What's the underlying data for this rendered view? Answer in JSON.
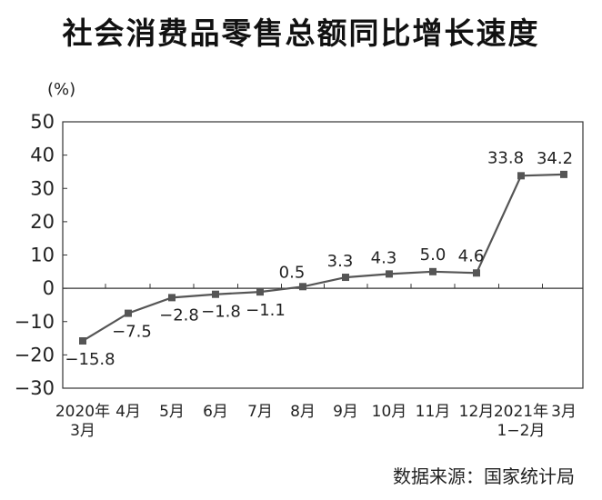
{
  "chart_data": {
    "type": "line",
    "title": "社会消费品零售总额同比增长速度",
    "ylabel": "(%)",
    "ylim": [
      -30,
      50
    ],
    "yticks": [
      "50",
      "40",
      "30",
      "20",
      "10",
      "0",
      "−10",
      "−20",
      "−30"
    ],
    "categories": [
      [
        "2020年",
        "3月"
      ],
      [
        "4月"
      ],
      [
        "5月"
      ],
      [
        "6月"
      ],
      [
        "7月"
      ],
      [
        "8月"
      ],
      [
        "9月"
      ],
      [
        "10月"
      ],
      [
        "11月"
      ],
      [
        "12月"
      ],
      [
        "2021年",
        "1−2月"
      ],
      [
        "3月"
      ]
    ],
    "values": [
      -15.8,
      -7.5,
      -2.8,
      -1.8,
      -1.1,
      0.5,
      3.3,
      4.3,
      5.0,
      4.6,
      33.8,
      34.2
    ],
    "data_labels": [
      "−15.8",
      "−7.5",
      "−2.8",
      "−1.8",
      "−1.1",
      "0.5",
      "3.3",
      "4.3",
      "5.0",
      "4.6",
      "33.8",
      "34.2"
    ],
    "grid": false
  },
  "source": "数据来源：国家统计局"
}
